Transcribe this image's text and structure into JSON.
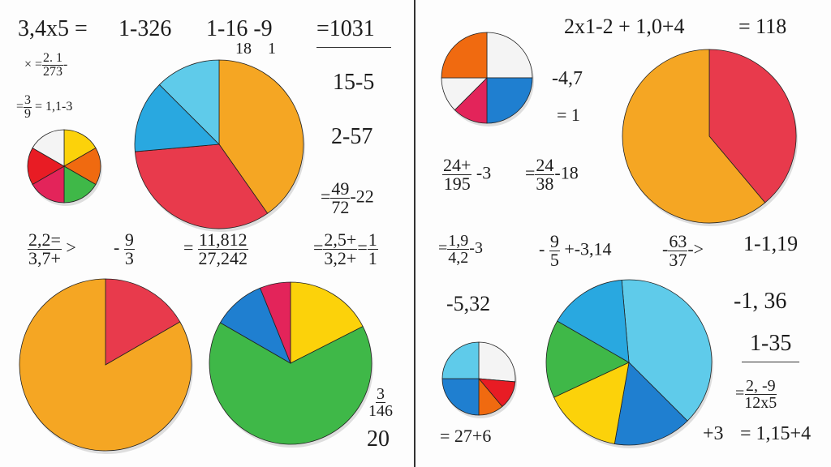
{
  "colors": {
    "orange": "#f5a623",
    "red": "#e83a4c",
    "lightblue": "#5fcbea",
    "blue": "#1f7fd0",
    "sky": "#29a8e0",
    "yellow": "#fcd20a",
    "green": "#3fb848",
    "white": "#f4f4f4",
    "darkorange": "#f06a10",
    "pink": "#e3245a",
    "brightred": "#e81c24"
  },
  "pies": [
    {
      "name": "pie-small-six",
      "slices": [
        [
          "yellow",
          0,
          60
        ],
        [
          "darkorange",
          60,
          120
        ],
        [
          "green",
          120,
          180
        ],
        [
          "pink",
          180,
          240
        ],
        [
          "brightred",
          240,
          300
        ],
        [
          "white",
          300,
          360
        ]
      ]
    },
    {
      "name": "pie-large-four",
      "slices": [
        [
          "orange",
          0,
          145
        ],
        [
          "red",
          145,
          265
        ],
        [
          "sky",
          265,
          315
        ],
        [
          "lightblue",
          315,
          360
        ]
      ]
    },
    {
      "name": "pie-top-right-small",
      "slices": [
        [
          "white",
          0,
          90
        ],
        [
          "blue",
          90,
          180
        ],
        [
          "pink",
          180,
          225
        ],
        [
          "white",
          225,
          270
        ],
        [
          "darkorange",
          270,
          360
        ]
      ]
    },
    {
      "name": "pie-top-right-large",
      "slices": [
        [
          "red",
          0,
          140
        ],
        [
          "orange",
          140,
          360
        ]
      ]
    },
    {
      "name": "pie-bottom-orange",
      "slices": [
        [
          "red",
          0,
          60
        ],
        [
          "orange",
          60,
          360
        ]
      ]
    },
    {
      "name": "pie-bottom-green",
      "slices": [
        [
          "yellow",
          0,
          63
        ],
        [
          "green",
          63,
          300
        ],
        [
          "blue",
          300,
          338
        ],
        [
          "pink",
          338,
          360
        ]
      ]
    },
    {
      "name": "pie-bottom-right-small",
      "slices": [
        [
          "white",
          0,
          95
        ],
        [
          "brightred",
          95,
          140
        ],
        [
          "darkorange",
          140,
          180
        ],
        [
          "blue",
          180,
          270
        ],
        [
          "lightblue",
          270,
          360
        ]
      ]
    },
    {
      "name": "pie-bottom-right-large",
      "slices": [
        [
          "lightblue",
          -5,
          135
        ],
        [
          "blue",
          135,
          190
        ],
        [
          "yellow",
          190,
          245
        ],
        [
          "green",
          245,
          300
        ],
        [
          "sky",
          300,
          355
        ]
      ]
    }
  ],
  "text": {
    "e1": "3,4x5 =",
    "e2": "1-326",
    "e3": "1-16 -9",
    "e3b": "18    1",
    "e4": "=1031",
    "e5a": "× =",
    "e5n": "2. 1",
    "e5d": "273",
    "e5b": "-",
    "e6a": "=",
    "e6n": "3",
    "e6d": "9",
    "e6b": "= 1,1-3",
    "e7": "15-5",
    "e8": "2-57",
    "e9a": "=",
    "e9n": "49",
    "e9d": "72",
    "e9b": "-22",
    "r1": "2x1-2 + 1,0+4",
    "r2": "= 118",
    "r3": "-4,7",
    "r4": "= 1",
    "r5n": "24+",
    "r5d": "195",
    "r5b": "-3",
    "r6a": "=",
    "r6n": "24",
    "r6d": "38",
    "r6b": "-18",
    "m1n": "2,2=",
    "m1d": "3,7+",
    "m1b": ">",
    "m2a": "-",
    "m2n": "9",
    "m2d": "3",
    "m3a": "=",
    "m3n": "11,812",
    "m3d": "27,242",
    "m4a": "=",
    "m4n": "2,5+",
    "m4d": "3,2+",
    "m4b": "=",
    "m4n2": "1",
    "m4d2": "1",
    "m5a": "=",
    "m5n": "1,9",
    "m5d": "4,2",
    "m5b": "-3",
    "m6a": "-",
    "m6n": "9",
    "m6d": "5",
    "m6b": "+-3,14",
    "m7a": "-",
    "m7n": "63",
    "m7d": "37",
    "m7b": "->",
    "m8": "1-1,19",
    "b1": "-5,32",
    "b2": "-1, 36",
    "b3": "1-35",
    "b4a": "=",
    "b4n": "2, -9",
    "b4d": "12x5",
    "b5": "+3",
    "b6": "= 1,15+4",
    "b7": "= 27+6",
    "b8n": "3",
    "b8d": "146",
    "b9": "20"
  }
}
